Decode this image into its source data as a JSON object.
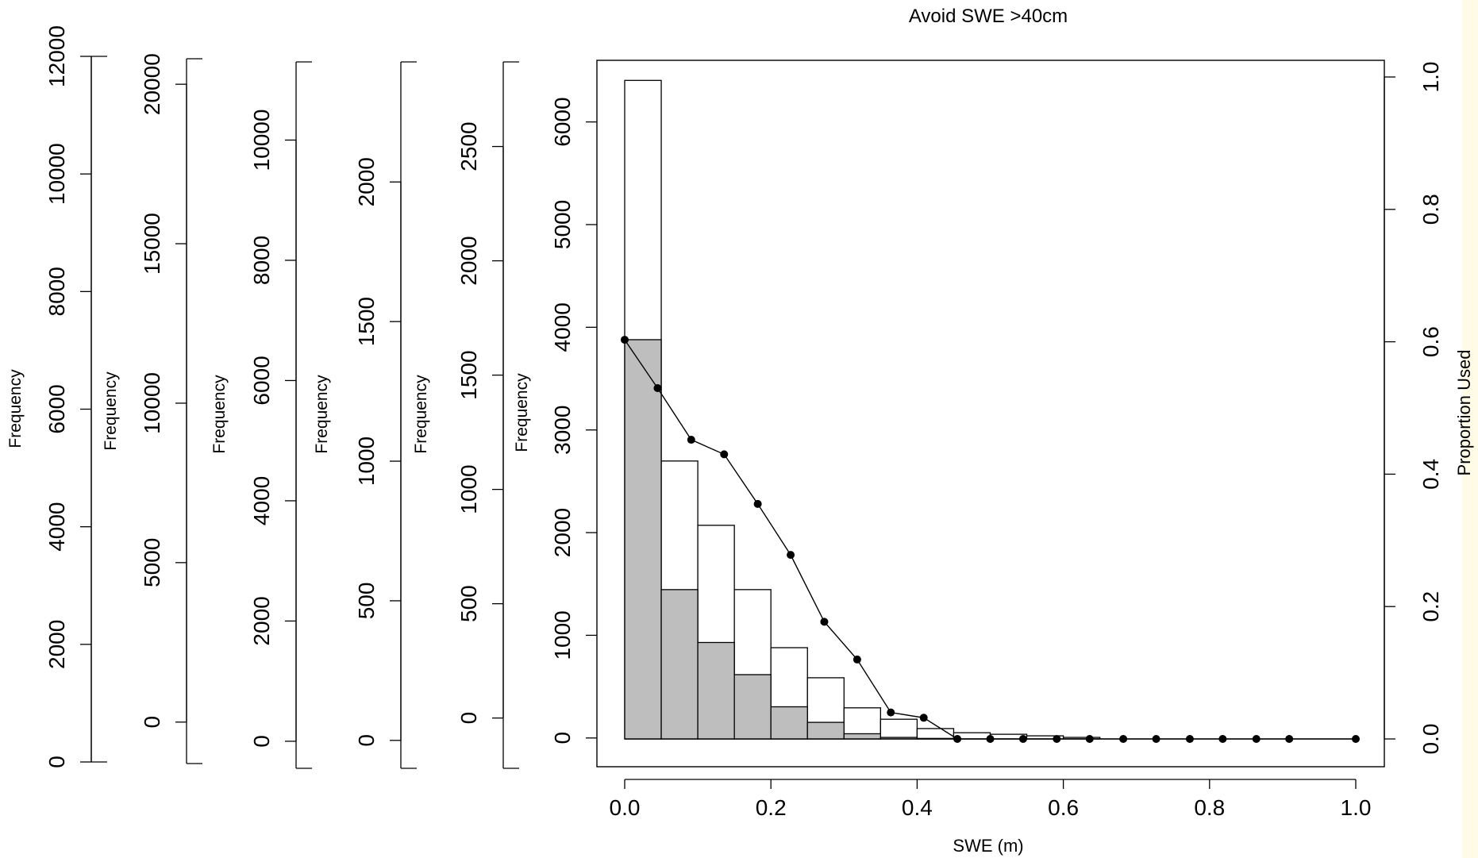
{
  "chart_data": {
    "type": "bar",
    "title": "Avoid SWE >40cm",
    "xlabel": "SWE (m)",
    "ylabel_right": "Proportion Used",
    "xlim": [
      0,
      1
    ],
    "x_ticks": [
      "0.0",
      "0.2",
      "0.4",
      "0.6",
      "0.8",
      "1.0"
    ],
    "y_ticks_right": [
      "0.0",
      "0.2",
      "0.4",
      "0.6",
      "0.8",
      "1.0"
    ],
    "ylim_right": [
      0,
      1
    ],
    "bins_edges": [
      0,
      0.05,
      0.1,
      0.15,
      0.2,
      0.25,
      0.3,
      0.35,
      0.4,
      0.45,
      0.5,
      0.55,
      0.6,
      0.65
    ],
    "hist_total": [
      6350,
      2680,
      2060,
      1440,
      880,
      590,
      300,
      190,
      100,
      60,
      45,
      30,
      15
    ],
    "hist_used": [
      3850,
      1440,
      930,
      620,
      310,
      160,
      50,
      15,
      5,
      0,
      0,
      0,
      0
    ],
    "bar_colors": {
      "used": "#bebebe",
      "total": "#ffffff"
    },
    "proportion_line": {
      "x": [
        0.0,
        0.045,
        0.091,
        0.136,
        0.182,
        0.227,
        0.273,
        0.318,
        0.364,
        0.409,
        0.455,
        0.5,
        0.545,
        0.591,
        0.636,
        0.682,
        0.727,
        0.773,
        0.818,
        0.864,
        0.909,
        1.0
      ],
      "y": [
        0.603,
        0.53,
        0.452,
        0.43,
        0.355,
        0.278,
        0.177,
        0.12,
        0.04,
        0.032,
        0.0,
        0.0,
        0.0,
        0.0,
        0.0,
        0.0,
        0.0,
        0.0,
        0.0,
        0.0,
        0.0,
        0.0
      ]
    },
    "frequency_axes": [
      {
        "label": "Frequency",
        "ticks": [
          0,
          2000,
          4000,
          6000,
          8000,
          10000,
          12000
        ],
        "tick_labels": [
          "0",
          "2000",
          "4000",
          "6000",
          "8000",
          "10000",
          "12000"
        ],
        "ylim": [
          0,
          12000
        ]
      },
      {
        "label": "Frequency",
        "ticks": [
          0,
          5000,
          10000,
          15000,
          20000
        ],
        "tick_labels": [
          "0",
          "5000",
          "10000",
          "15000",
          "20000"
        ],
        "ylim": [
          -1300,
          20800
        ]
      },
      {
        "label": "Frequency",
        "ticks": [
          0,
          2000,
          4000,
          6000,
          8000,
          10000
        ],
        "tick_labels": [
          "0",
          "2000",
          "4000",
          "6000",
          "8000",
          "10000"
        ],
        "ylim": [
          -450,
          11300
        ]
      },
      {
        "label": "Frequency",
        "ticks": [
          0,
          500,
          1000,
          1500,
          2000
        ],
        "tick_labels": [
          "0",
          "500",
          "1000",
          "1500",
          "2000"
        ],
        "ylim": [
          -100,
          2430
        ]
      },
      {
        "label": "Frequency",
        "ticks": [
          0,
          500,
          1000,
          1500,
          2000,
          2500
        ],
        "tick_labels": [
          "0",
          "500",
          "1000",
          "1500",
          "2000",
          "2500"
        ],
        "ylim": [
          -220,
          2870
        ]
      },
      {
        "label": "Frequency",
        "ticks": [
          0,
          1000,
          2000,
          3000,
          4000,
          5000,
          6000
        ],
        "tick_labels": [
          "0",
          "1000",
          "2000",
          "3000",
          "4000",
          "5000",
          "6000"
        ],
        "ylim": [
          -280,
          6600
        ]
      }
    ]
  }
}
